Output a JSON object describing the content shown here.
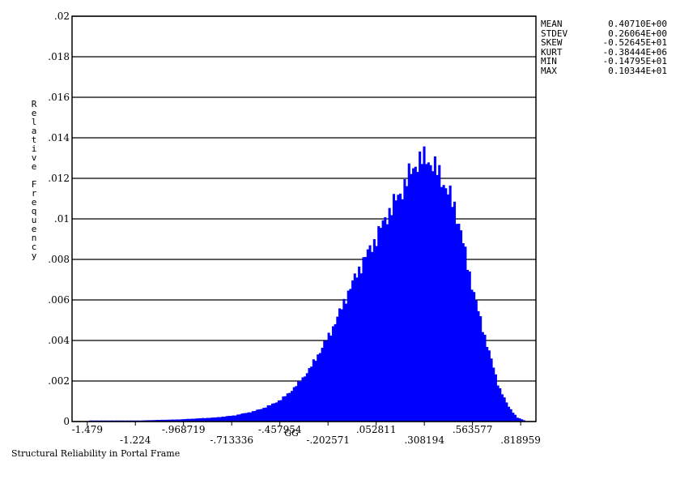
{
  "chart_data": {
    "type": "bar",
    "title": "",
    "xlabel": "GG",
    "ylabel": "Relative Frequency",
    "xlim": [
      -1.5598,
      0.9
    ],
    "ylim": [
      0,
      0.02
    ],
    "grid": true,
    "yticks": [
      {
        "value": 0,
        "label": "0"
      },
      {
        "value": 0.002,
        "label": ".002"
      },
      {
        "value": 0.004,
        "label": ".004"
      },
      {
        "value": 0.006,
        "label": ".006"
      },
      {
        "value": 0.008,
        "label": ".008"
      },
      {
        "value": 0.01,
        "label": ".01"
      },
      {
        "value": 0.012,
        "label": ".012"
      },
      {
        "value": 0.014,
        "label": ".014"
      },
      {
        "value": 0.016,
        "label": ".016"
      },
      {
        "value": 0.018,
        "label": ".018"
      },
      {
        "value": 0.02,
        "label": ".02"
      }
    ],
    "xticks_row1": [
      {
        "value": -1.479,
        "label": "-1.479"
      },
      {
        "value": -0.968719,
        "label": "-.968719"
      },
      {
        "value": -0.457954,
        "label": "-.457954"
      },
      {
        "value": 0.052811,
        "label": ".052811"
      },
      {
        "value": 0.563577,
        "label": ".563577"
      }
    ],
    "xticks_row2": [
      {
        "value": -1.224,
        "label": "-1.224"
      },
      {
        "value": -0.713336,
        "label": "-.713336"
      },
      {
        "value": -0.202571,
        "label": "-.202571"
      },
      {
        "value": 0.308194,
        "label": ".308194"
      },
      {
        "value": 0.818959,
        "label": ".818959"
      }
    ],
    "bar_color": "#0000ff",
    "bins": {
      "x": [
        -1.47,
        -1.4,
        -1.3,
        -1.2,
        -1.1,
        -1.0,
        -0.9,
        -0.8,
        -0.7,
        -0.6,
        -0.55,
        -0.5,
        -0.45,
        -0.4,
        -0.35,
        -0.3,
        -0.25,
        -0.2,
        -0.15,
        -0.1,
        -0.05,
        0.0,
        0.05,
        0.1,
        0.15,
        0.2,
        0.23,
        0.26,
        0.29,
        0.32,
        0.35,
        0.38,
        0.41,
        0.44,
        0.47,
        0.5,
        0.53,
        0.56,
        0.6,
        0.65,
        0.7,
        0.75,
        0.8,
        0.84
      ],
      "values": [
        5e-05,
        5e-05,
        5e-05,
        5e-05,
        8e-05,
        0.0001,
        0.00015,
        0.0002,
        0.0003,
        0.0005,
        0.00065,
        0.00085,
        0.0011,
        0.0015,
        0.002,
        0.0026,
        0.0034,
        0.0042,
        0.0052,
        0.0063,
        0.0073,
        0.0082,
        0.009,
        0.01,
        0.0108,
        0.0116,
        0.0122,
        0.0127,
        0.0129,
        0.013,
        0.0127,
        0.0123,
        0.0118,
        0.0112,
        0.0105,
        0.0095,
        0.008,
        0.0068,
        0.0052,
        0.0035,
        0.0018,
        0.0008,
        0.0002,
        5e-05
      ]
    }
  },
  "stats": [
    {
      "name": "MEAN",
      "value": "0.40710E+00"
    },
    {
      "name": "STDEV",
      "value": "0.26064E+00"
    },
    {
      "name": "SKEW",
      "value": "-0.52645E+01"
    },
    {
      "name": "KURT",
      "value": "-0.38444E+06"
    },
    {
      "name": "MIN",
      "value": "-0.14795E+01"
    },
    {
      "name": "MAX",
      "value": "0.10344E+01"
    }
  ],
  "caption": "Structural Reliability in Portal Frame"
}
